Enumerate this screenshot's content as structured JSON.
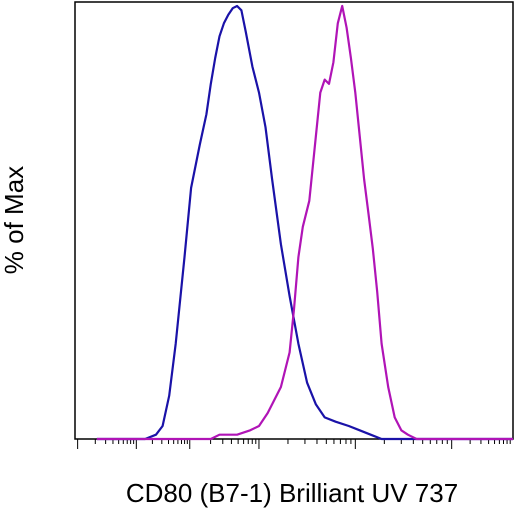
{
  "chart_data": {
    "type": "line",
    "title": "",
    "xlabel": "CD80 (B7-1) Brilliant UV 737",
    "ylabel": "% of Max",
    "x_scale": "log",
    "y_scale": "linear",
    "ylim": [
      0,
      100
    ],
    "grid": false,
    "legend": "none",
    "x_tick_labels": [],
    "y_tick_labels": [],
    "series": [
      {
        "color": "#1a12a8",
        "points": [
          [
            0.05,
            0
          ],
          [
            0.16,
            0
          ],
          [
            0.185,
            1
          ],
          [
            0.2,
            3
          ],
          [
            0.215,
            10
          ],
          [
            0.23,
            22
          ],
          [
            0.25,
            42
          ],
          [
            0.265,
            58
          ],
          [
            0.285,
            68
          ],
          [
            0.3,
            75
          ],
          [
            0.31,
            82
          ],
          [
            0.32,
            88
          ],
          [
            0.33,
            93
          ],
          [
            0.34,
            96
          ],
          [
            0.35,
            98
          ],
          [
            0.36,
            99.5
          ],
          [
            0.37,
            100
          ],
          [
            0.38,
            99
          ],
          [
            0.39,
            94
          ],
          [
            0.405,
            86
          ],
          [
            0.42,
            80
          ],
          [
            0.435,
            72
          ],
          [
            0.45,
            60
          ],
          [
            0.47,
            45
          ],
          [
            0.49,
            33
          ],
          [
            0.51,
            22
          ],
          [
            0.53,
            13
          ],
          [
            0.55,
            8
          ],
          [
            0.57,
            5
          ],
          [
            0.595,
            4
          ],
          [
            0.625,
            3
          ],
          [
            0.65,
            2
          ],
          [
            0.675,
            1
          ],
          [
            0.7,
            0
          ],
          [
            1.0,
            0
          ]
        ]
      },
      {
        "color": "#b014b6",
        "points": [
          [
            0.05,
            0
          ],
          [
            0.31,
            0
          ],
          [
            0.33,
            1
          ],
          [
            0.37,
            1
          ],
          [
            0.4,
            2
          ],
          [
            0.42,
            3
          ],
          [
            0.44,
            6
          ],
          [
            0.47,
            12
          ],
          [
            0.49,
            20
          ],
          [
            0.5,
            30
          ],
          [
            0.51,
            42
          ],
          [
            0.52,
            49
          ],
          [
            0.535,
            55
          ],
          [
            0.55,
            70
          ],
          [
            0.56,
            80
          ],
          [
            0.57,
            83
          ],
          [
            0.58,
            82
          ],
          [
            0.59,
            87
          ],
          [
            0.6,
            96
          ],
          [
            0.61,
            100
          ],
          [
            0.62,
            95
          ],
          [
            0.63,
            88
          ],
          [
            0.64,
            80
          ],
          [
            0.65,
            70
          ],
          [
            0.66,
            60
          ],
          [
            0.67,
            52
          ],
          [
            0.68,
            44
          ],
          [
            0.69,
            34
          ],
          [
            0.7,
            22
          ],
          [
            0.715,
            12
          ],
          [
            0.73,
            5
          ],
          [
            0.745,
            2
          ],
          [
            0.76,
            1
          ],
          [
            0.78,
            0
          ],
          [
            1.0,
            0
          ]
        ]
      }
    ]
  }
}
